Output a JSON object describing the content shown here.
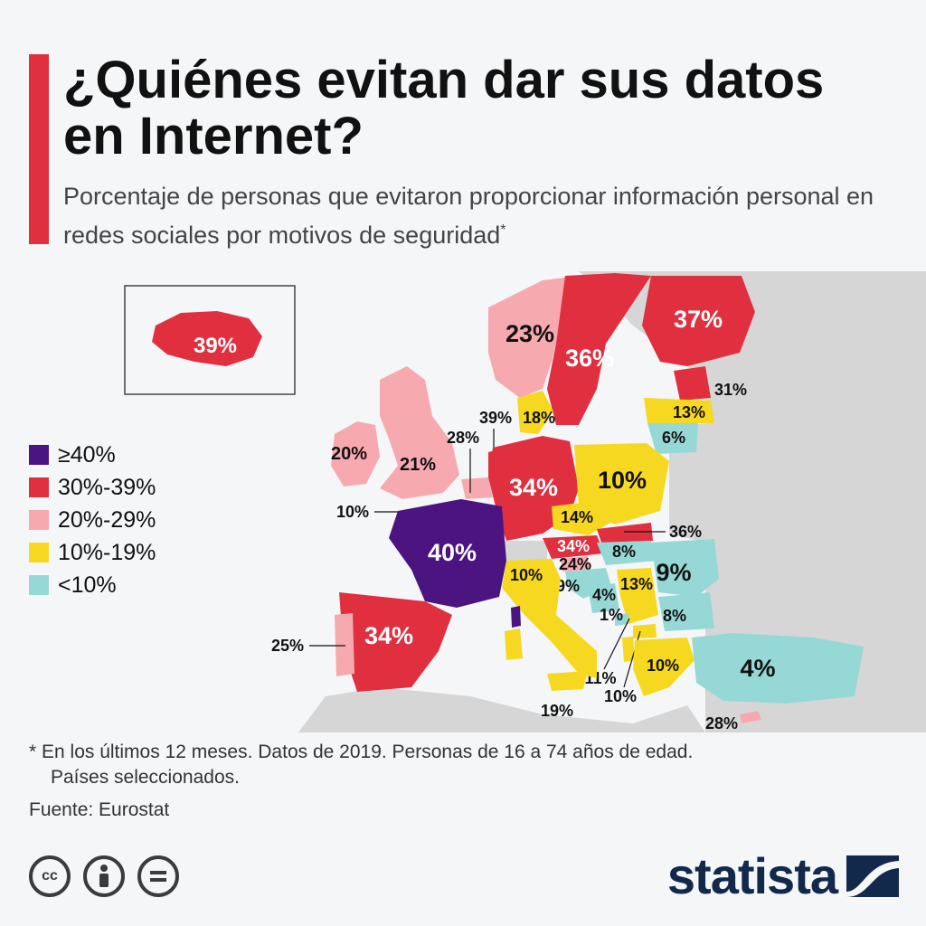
{
  "header": {
    "title": "¿Quiénes evitan dar sus datos en Internet?",
    "subtitle": "Porcentaje de personas que evitaron proporcionar información personal en redes sociales por motivos de seguridad",
    "subtitle_mark": "*"
  },
  "colors": {
    "accent": "#e0303f",
    "ge40": "#4b1480",
    "r30_39": "#e0303f",
    "r20_29": "#f7a9b0",
    "r10_19": "#f7d820",
    "lt10": "#96d8d6",
    "other_land": "#d6d6d6",
    "sea": "#f4f6f8",
    "logo": "#13294b"
  },
  "legend": [
    {
      "label": "≥40%",
      "color": "#4b1480"
    },
    {
      "label": "30%-39%",
      "color": "#e0303f"
    },
    {
      "label": "20%-29%",
      "color": "#f7a9b0"
    },
    {
      "label": "10%-19%",
      "color": "#f7d820"
    },
    {
      "label": "<10%",
      "color": "#96d8d6"
    }
  ],
  "countries": {
    "iceland": "39%",
    "ireland": "20%",
    "uk": "21%",
    "norway": "23%",
    "sweden": "36%",
    "finland": "37%",
    "estonia": "31%",
    "latvia": "13%",
    "lithuania": "6%",
    "denmark": "18%",
    "netherlands": "39%",
    "belgium": "28%",
    "luxembourg": "10%",
    "germany": "34%",
    "poland": "10%",
    "czechia": "14%",
    "slovakia": "36%",
    "austria": "34%",
    "hungary": "8%",
    "slovenia": "24%",
    "croatia": "9%",
    "bosnia": "4%",
    "serbia": "13%",
    "romania": "9%",
    "bulgaria": "8%",
    "montenegro": "1%",
    "north_macedonia": "11%",
    "albania": "10%",
    "greece": "10%",
    "turkey": "4%",
    "cyprus": "28%",
    "italy": "10%",
    "malta": "19%",
    "france": "40%",
    "spain": "34%",
    "portugal": "25%"
  },
  "footnote": {
    "line1": "* En los últimos 12 meses. Datos de 2019. Personas de 16 a 74 años de edad.",
    "line2": "Países seleccionados."
  },
  "source": "Fuente: Eurostat",
  "license_icons": [
    {
      "name": "cc-icon",
      "text": "cc"
    },
    {
      "name": "attribution-icon",
      "text": ""
    },
    {
      "name": "no-derivatives-icon",
      "text": ""
    }
  ],
  "logo": {
    "text": "statista"
  }
}
